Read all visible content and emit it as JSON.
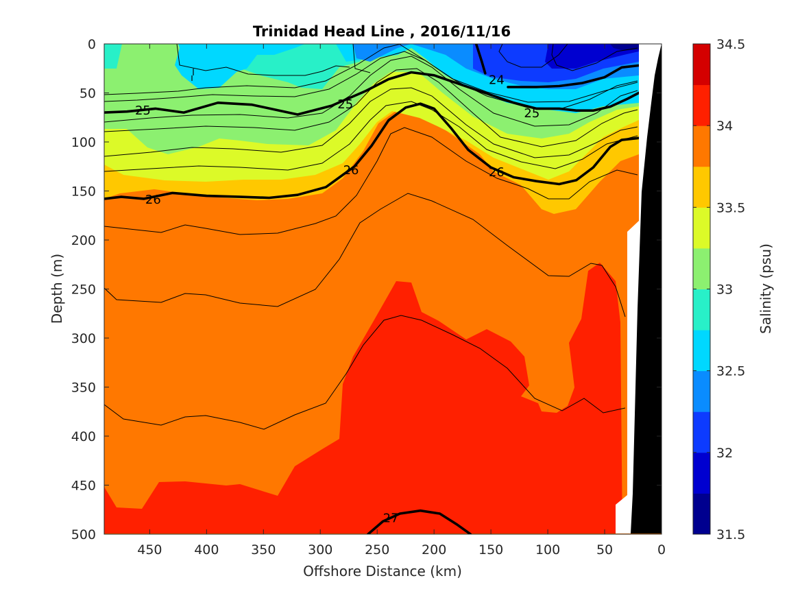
{
  "chart_data": {
    "type": "heatmap",
    "title": "Trinidad Head Line , 2016/11/16",
    "xlabel": "Offshore Distance (km)",
    "ylabel": "Depth (m)",
    "xlim": [
      490,
      0
    ],
    "ylim": [
      0,
      500
    ],
    "x_reversed": true,
    "y_reversed": true,
    "x_ticks": [
      450,
      400,
      350,
      300,
      250,
      200,
      150,
      100,
      50,
      0
    ],
    "y_ticks": [
      0,
      50,
      100,
      150,
      200,
      250,
      300,
      350,
      400,
      450,
      500
    ],
    "colorbar": {
      "label": "Salinity (psu)",
      "range": [
        31.5,
        34.5
      ],
      "tick_values": [
        31.5,
        32,
        32.5,
        33,
        33.5,
        34,
        34.5
      ],
      "tick_labels": [
        "31.5",
        "32",
        "32.5",
        "33",
        "33.5",
        "34",
        "34.5"
      ],
      "colors": [
        "#00008f",
        "#0000d0",
        "#0d3bff",
        "#0a8cff",
        "#00d8ff",
        "#28f0c8",
        "#8cf070",
        "#dcfa28",
        "#ffc800",
        "#ff7800",
        "#ff2000",
        "#d40000"
      ]
    },
    "salinity_bands": [
      {
        "min": 31.75,
        "max": 32.0,
        "color": "#0000d0"
      },
      {
        "min": 32.0,
        "max": 32.25,
        "color": "#0d3bff"
      },
      {
        "min": 32.25,
        "max": 32.5,
        "color": "#0a8cff"
      },
      {
        "min": 32.5,
        "max": 32.75,
        "color": "#00d8ff"
      },
      {
        "min": 32.75,
        "max": 33.0,
        "color": "#28f0c8"
      },
      {
        "min": 33.0,
        "max": 33.25,
        "color": "#8cf070"
      },
      {
        "min": 33.25,
        "max": 33.5,
        "color": "#dcfa28"
      },
      {
        "min": 33.5,
        "max": 33.75,
        "color": "#ffc800"
      },
      {
        "min": 33.75,
        "max": 34.0,
        "color": "#ff7800"
      },
      {
        "min": 34.0,
        "max": 34.25,
        "color": "#ff2000"
      }
    ],
    "density_contour_labels": [
      {
        "text": "24",
        "x": 145,
        "y": 36
      },
      {
        "text": "25",
        "x": 456,
        "y": 67
      },
      {
        "text": "25",
        "x": 278,
        "y": 61
      },
      {
        "text": "25",
        "x": 114,
        "y": 70
      },
      {
        "text": "26",
        "x": 447,
        "y": 158
      },
      {
        "text": "26",
        "x": 273,
        "y": 128
      },
      {
        "text": "26",
        "x": 145,
        "y": 130
      },
      {
        "text": "27",
        "x": 238,
        "y": 483
      }
    ],
    "bold_isopycnals": [
      {
        "label": "24",
        "x": [
          163,
          158,
          155
        ],
        "y": [
          0,
          18,
          30
        ]
      },
      {
        "label": "25",
        "x": [
          490,
          470,
          445,
          420,
          390,
          360,
          320,
          290,
          260,
          240,
          220,
          200,
          170,
          150,
          130,
          110,
          90,
          75,
          60,
          45,
          30,
          20
        ],
        "y": [
          70,
          69,
          66,
          70,
          60,
          62,
          72,
          63,
          48,
          36,
          29,
          32,
          44,
          52,
          60,
          66,
          66,
          68,
          68,
          64,
          56,
          50
        ]
      },
      {
        "label": "24",
        "x": [
          135,
          110,
          90,
          70,
          50,
          35,
          20
        ],
        "y": [
          44,
          44,
          43,
          40,
          34,
          24,
          22
        ]
      },
      {
        "label": "26",
        "x": [
          490,
          475,
          455,
          430,
          400,
          370,
          345,
          320,
          295,
          270,
          255,
          240,
          225,
          212,
          200,
          185,
          170,
          150,
          130,
          110,
          90,
          75,
          60,
          45,
          35,
          20
        ],
        "y": [
          158,
          156,
          158,
          152,
          155,
          156,
          157,
          154,
          146,
          125,
          104,
          78,
          65,
          61,
          66,
          86,
          108,
          126,
          136,
          140,
          143,
          139,
          126,
          105,
          98,
          96
        ]
      },
      {
        "label": "27",
        "x": [
          258,
          245,
          230,
          212,
          195,
          180,
          168
        ],
        "y": [
          500,
          487,
          479,
          476,
          479,
          490,
          500
        ]
      }
    ]
  }
}
